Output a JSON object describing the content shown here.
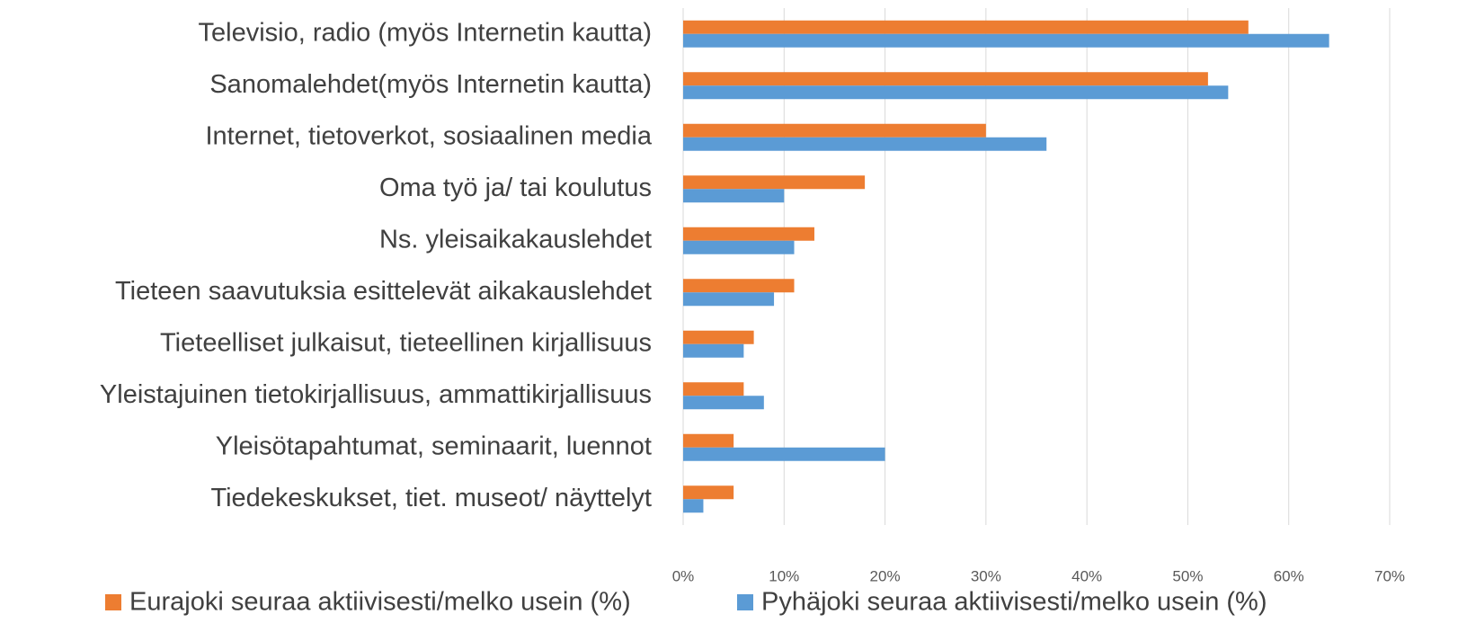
{
  "chart_data": {
    "type": "bar",
    "orientation": "horizontal",
    "categories": [
      "Televisio, radio (myös Internetin kautta)",
      "Sanomalehdet(myös Internetin kautta)",
      "Internet, tietoverkot, sosiaalinen media",
      "Oma työ ja/ tai koulutus",
      "Ns. yleisaikakauslehdet",
      "Tieteen saavutuksia esittelevät aikakauslehdet",
      "Tieteelliset julkaisut, tieteellinen kirjallisuus",
      "Yleistajuinen tietokirjallisuus, ammattikirjallisuus",
      "Yleisötapahtumat, seminaarit, luennot",
      "Tiedekeskukset, tiet. museot/ näyttelyt"
    ],
    "series": [
      {
        "name": "Eurajoki seuraa aktiivisesti/melko usein (%)",
        "color": "#ed7d31",
        "values": [
          56,
          52,
          30,
          18,
          13,
          11,
          7,
          6,
          5,
          5
        ]
      },
      {
        "name": "Pyhäjoki seuraa aktiivisesti/melko usein (%)",
        "color": "#5b9bd5",
        "values": [
          64,
          54,
          36,
          10,
          11,
          9,
          6,
          8,
          20,
          2
        ]
      }
    ],
    "xlim": [
      0,
      70
    ],
    "xticks": [
      {
        "value": 0,
        "label": "0%"
      },
      {
        "value": 10,
        "label": "10%"
      },
      {
        "value": 20,
        "label": "20%"
      },
      {
        "value": 30,
        "label": "30%"
      },
      {
        "value": 40,
        "label": "40%"
      },
      {
        "value": 50,
        "label": "50%"
      },
      {
        "value": 60,
        "label": "60%"
      },
      {
        "value": 70,
        "label": "70%"
      }
    ],
    "grid": true,
    "legend": "bottom"
  }
}
